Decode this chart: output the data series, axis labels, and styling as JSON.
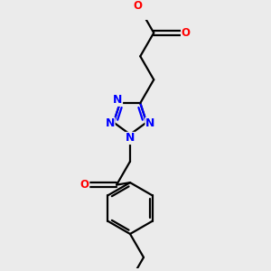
{
  "bg_color": "#ebebeb",
  "bond_color": "#000000",
  "N_color": "#0000ff",
  "O_color": "#ff0000",
  "line_width": 1.6,
  "font_size": 8.5,
  "fig_size": [
    3.0,
    3.0
  ],
  "dpi": 100,
  "xlim": [
    -1.1,
    1.5
  ],
  "ylim": [
    -2.8,
    1.8
  ]
}
